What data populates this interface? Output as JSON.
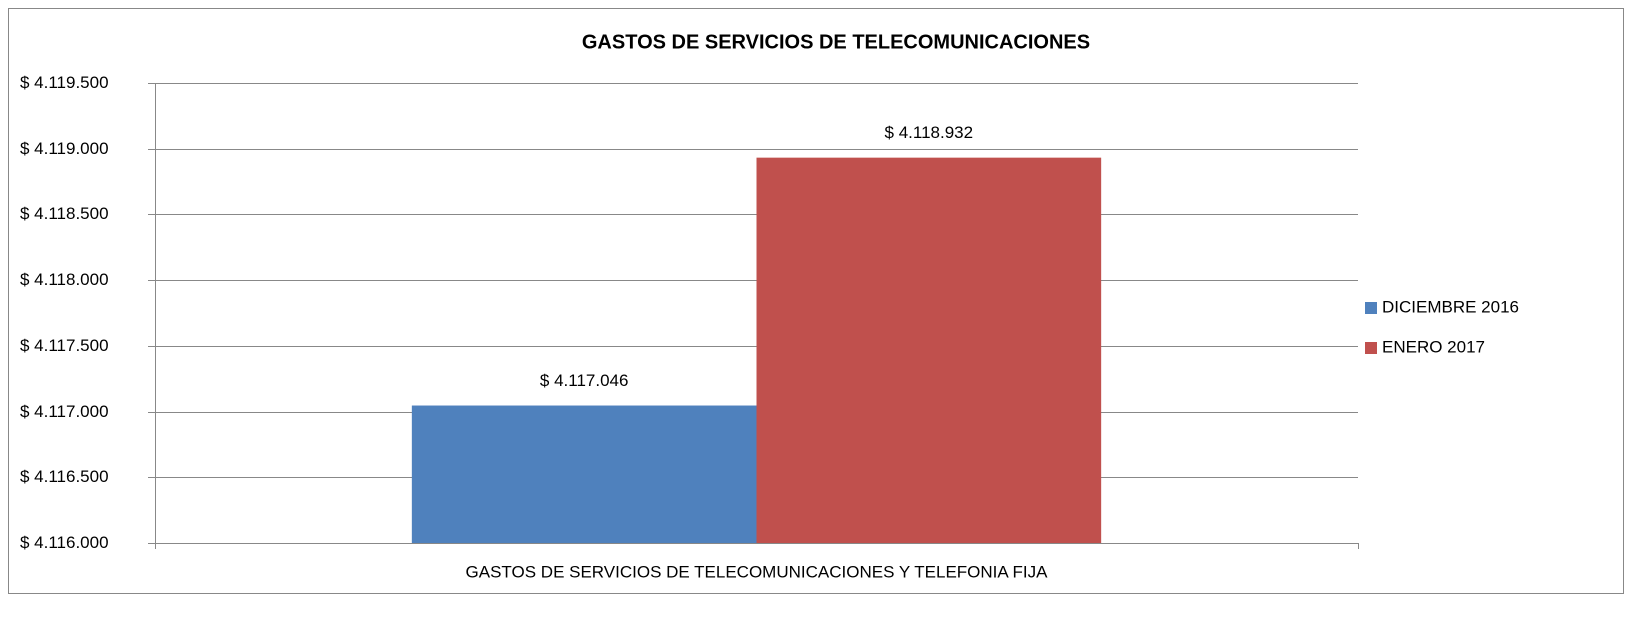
{
  "chart_data": {
    "type": "bar",
    "title": "GASTOS DE SERVICIOS DE TELECOMUNICACIONES",
    "categories": [
      "GASTOS DE SERVICIOS DE TELECOMUNICACIONES Y TELEFONIA FIJA"
    ],
    "series": [
      {
        "name": "DICIEMBRE 2016",
        "color": "#4f81bd",
        "values": [
          4117046
        ],
        "value_labels": [
          "$ 4.117.046"
        ]
      },
      {
        "name": "ENERO 2017",
        "color": "#c0504d",
        "values": [
          4118932
        ],
        "value_labels": [
          "$ 4.118.932"
        ]
      }
    ],
    "ylim": [
      4116000,
      4119500
    ],
    "yticks": [
      {
        "value": 4116000,
        "label": "$ 4.116.000"
      },
      {
        "value": 4116500,
        "label": "$ 4.116.500"
      },
      {
        "value": 4117000,
        "label": "$ 4.117.000"
      },
      {
        "value": 4117500,
        "label": "$ 4.117.500"
      },
      {
        "value": 4118000,
        "label": "$ 4.118.000"
      },
      {
        "value": 4118500,
        "label": "$ 4.118.500"
      },
      {
        "value": 4119000,
        "label": "$ 4.119.000"
      },
      {
        "value": 4119500,
        "label": "$ 4.119.500"
      }
    ],
    "grid": true,
    "legend": "right"
  }
}
